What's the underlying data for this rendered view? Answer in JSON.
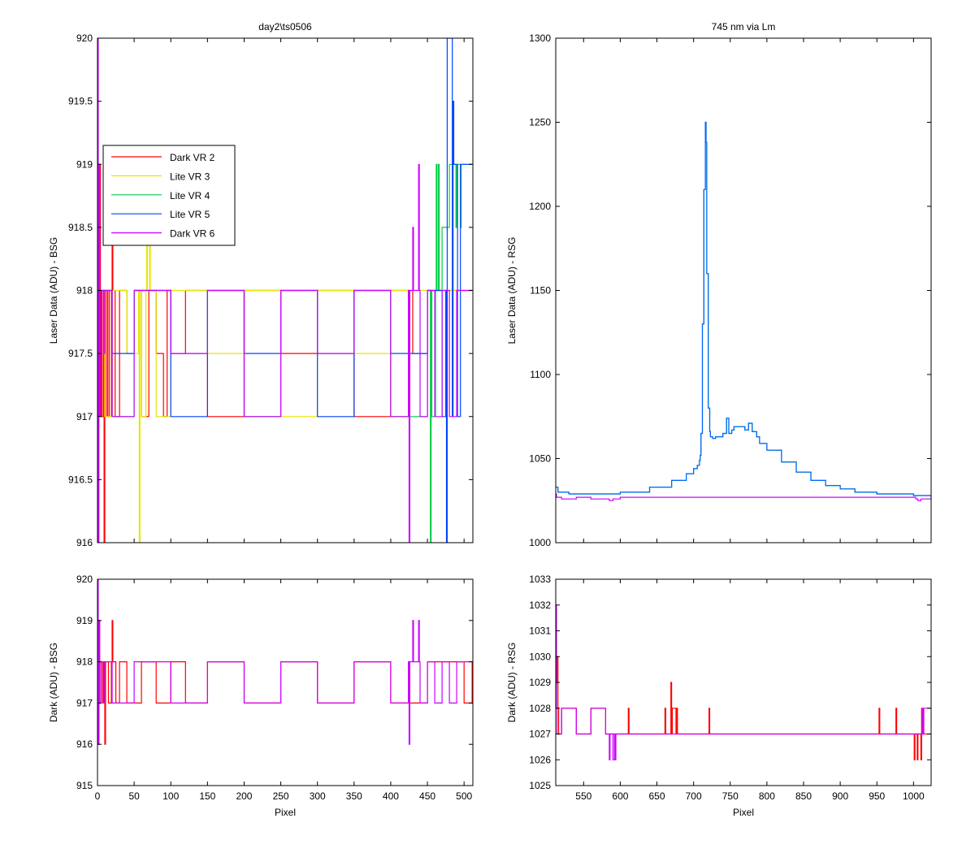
{
  "chart_data": [
    {
      "type": "line",
      "title": "day2\\ts0506",
      "ylabel": "Laser Data (ADU) - BSG",
      "xlabel": "",
      "xlim": [
        0,
        512
      ],
      "ylim": [
        916,
        920
      ],
      "xticks": [
        0,
        50,
        100,
        150,
        200,
        250,
        300,
        350,
        400,
        450,
        500
      ],
      "xtick_labels": [],
      "yticks": [
        916,
        916.5,
        917,
        917.5,
        918,
        918.5,
        919,
        919.5,
        920
      ],
      "ytick_labels": [
        "916",
        "916.5",
        "917",
        "917.5",
        "918",
        "918.5",
        "919",
        "919.5",
        "920"
      ],
      "grid": false,
      "legend": {
        "placement": "upper-left"
      },
      "series": [
        {
          "name": "Dark VR 2",
          "color": "#ff0000",
          "x": [
            0,
            1,
            2,
            3,
            4,
            5,
            6,
            8,
            9,
            10,
            12,
            14,
            16,
            19,
            20,
            21,
            24,
            30,
            40,
            50,
            60,
            70,
            80,
            90,
            95,
            100,
            120,
            150,
            200,
            250,
            300,
            350,
            400,
            430,
            450,
            480,
            511
          ],
          "y": [
            920,
            917,
            918,
            919,
            917,
            918,
            917,
            918,
            916,
            917,
            918,
            917,
            918,
            917,
            918.5,
            918,
            917,
            918,
            917.5,
            918,
            917,
            918,
            917.5,
            917,
            918,
            917.5,
            918,
            917,
            918,
            917.5,
            918,
            917,
            918,
            917.5,
            918,
            918,
            918
          ]
        },
        {
          "name": "Lite VR 3",
          "color": "#e6e600",
          "x": [
            0,
            10,
            20,
            40,
            56,
            57,
            58,
            60,
            66,
            67,
            68,
            71,
            72,
            80,
            100,
            150,
            200,
            250,
            300,
            350,
            400,
            450,
            511
          ],
          "y": [
            918,
            917,
            918,
            917.5,
            918,
            916,
            918,
            917,
            918,
            918.5,
            918,
            918.5,
            918,
            917,
            918,
            917.5,
            918,
            917,
            918,
            917.5,
            918,
            918,
            918
          ]
        },
        {
          "name": "Lite VR 4",
          "color": "#00cc44",
          "x": [
            0,
            20,
            50,
            100,
            150,
            200,
            250,
            300,
            350,
            400,
            450,
            454,
            455,
            456,
            461,
            462,
            463,
            465,
            466,
            470,
            480,
            489,
            490,
            495,
            496,
            511
          ],
          "y": [
            918,
            917,
            918,
            917.5,
            918,
            917,
            918,
            917.5,
            918,
            917,
            918,
            916,
            918,
            917,
            918,
            919,
            918,
            919,
            918,
            918.5,
            919,
            918.5,
            919,
            918.5,
            919,
            919
          ]
        },
        {
          "name": "Lite VR 5",
          "color": "#0044ff",
          "x": [
            0,
            20,
            50,
            100,
            150,
            200,
            250,
            300,
            350,
            400,
            450,
            470,
            475,
            476,
            477,
            480,
            484,
            485,
            486,
            490,
            491,
            495,
            511
          ],
          "y": [
            918,
            917.5,
            918,
            917,
            918,
            917.5,
            918,
            917,
            918,
            917.5,
            918,
            917,
            918,
            916,
            920,
            920,
            917,
            919.5,
            919,
            919,
            917,
            919,
            919
          ]
        },
        {
          "name": "Dark VR 6",
          "color": "#cc00ff",
          "x": [
            0,
            1,
            2,
            3,
            5,
            8,
            10,
            20,
            50,
            100,
            150,
            200,
            250,
            300,
            350,
            400,
            424,
            425,
            426,
            430,
            431,
            432,
            438,
            439,
            440,
            450,
            460,
            470,
            480,
            490,
            500,
            511
          ],
          "y": [
            920,
            916,
            919,
            917,
            918,
            917.5,
            918,
            917,
            918,
            917.5,
            918,
            917,
            918,
            917.5,
            918,
            917,
            918,
            916,
            918,
            918.5,
            918,
            918,
            919,
            918,
            917,
            918,
            917,
            918,
            917,
            918,
            918,
            918
          ]
        }
      ]
    },
    {
      "type": "line",
      "title": "745 nm via Lm",
      "ylabel": "Laser Data (ADU) - RSG",
      "xlabel": "",
      "xlim": [
        512,
        1024
      ],
      "ylim": [
        1000,
        1300
      ],
      "xticks": [
        550,
        600,
        650,
        700,
        750,
        800,
        850,
        900,
        950,
        1000
      ],
      "xtick_labels": [],
      "yticks": [
        1000,
        1050,
        1100,
        1150,
        1200,
        1250,
        1300
      ],
      "ytick_labels": [
        "1000",
        "1050",
        "1100",
        "1150",
        "1200",
        "1250",
        "1300"
      ],
      "grid": false,
      "series": [
        {
          "name": "",
          "color": "#00aa44",
          "x": [
            512,
            515,
            530,
            560,
            600,
            640,
            670,
            690,
            700,
            705,
            708,
            709,
            710,
            712,
            714,
            716,
            717,
            718,
            720,
            722,
            723,
            726,
            730,
            740,
            745,
            748,
            752,
            755,
            770,
            775,
            780,
            783,
            786,
            790,
            800,
            820,
            840,
            860,
            880,
            900,
            920,
            950,
            1000,
            1024
          ],
          "y": [
            1033,
            1030,
            1029,
            1029,
            1030,
            1033,
            1037,
            1041,
            1044,
            1046,
            1049,
            1052,
            1065,
            1130,
            1210,
            1250,
            1238,
            1160,
            1080,
            1066,
            1063,
            1062,
            1063,
            1065,
            1074,
            1065,
            1067,
            1069,
            1067,
            1071,
            1066,
            1066,
            1063,
            1059,
            1055,
            1048,
            1042,
            1037,
            1034,
            1032,
            1030,
            1029,
            1028,
            1027
          ]
        },
        {
          "name": "",
          "color": "#0066ff",
          "x": [
            512,
            515,
            530,
            560,
            600,
            640,
            670,
            690,
            700,
            705,
            708,
            709,
            710,
            712,
            714,
            716,
            717,
            718,
            720,
            722,
            723,
            726,
            730,
            740,
            745,
            748,
            752,
            755,
            770,
            775,
            780,
            783,
            786,
            790,
            800,
            820,
            840,
            860,
            880,
            900,
            920,
            950,
            1000,
            1024
          ],
          "y": [
            1033,
            1030,
            1029,
            1029,
            1030,
            1033,
            1037,
            1041,
            1044,
            1046,
            1049,
            1052,
            1065,
            1130,
            1210,
            1250,
            1238,
            1160,
            1080,
            1066,
            1063,
            1062,
            1063,
            1065,
            1074,
            1065,
            1067,
            1069,
            1067,
            1071,
            1066,
            1066,
            1063,
            1059,
            1055,
            1048,
            1042,
            1037,
            1034,
            1032,
            1030,
            1029,
            1028,
            1027
          ]
        },
        {
          "name": "",
          "color": "#cc00ff",
          "x": [
            512,
            513,
            520,
            540,
            560,
            580,
            585,
            590,
            600,
            700,
            800,
            900,
            1000,
            1003,
            1006,
            1010,
            1024
          ],
          "y": [
            1029,
            1027,
            1026,
            1027,
            1026,
            1026,
            1025,
            1026,
            1027,
            1027,
            1027,
            1027,
            1027,
            1026,
            1025,
            1026,
            1027
          ]
        }
      ]
    },
    {
      "type": "line",
      "title": "",
      "ylabel": "Dark (ADU) - BSG",
      "xlabel": "Pixel",
      "xlim": [
        0,
        512
      ],
      "ylim": [
        915,
        920
      ],
      "xticks": [
        0,
        50,
        100,
        150,
        200,
        250,
        300,
        350,
        400,
        450,
        500
      ],
      "xtick_labels": [
        "0",
        "50",
        "100",
        "150",
        "200",
        "250",
        "300",
        "350",
        "400",
        "450",
        "500"
      ],
      "yticks": [
        915,
        916,
        917,
        918,
        919,
        920
      ],
      "ytick_labels": [
        "915",
        "916",
        "917",
        "918",
        "919",
        "920"
      ],
      "grid": false,
      "series": [
        {
          "name": "Dark VR 2",
          "color": "#ff0000",
          "x": [
            0,
            1,
            2,
            3,
            5,
            7,
            9,
            10,
            11,
            15,
            19,
            20,
            21,
            25,
            30,
            40,
            60,
            80,
            100,
            120,
            150,
            200,
            250,
            300,
            350,
            400,
            450,
            500,
            511
          ],
          "y": [
            920,
            916,
            919,
            917,
            918,
            917,
            918,
            916,
            918,
            917,
            918,
            919,
            918,
            917,
            918,
            917,
            918,
            917,
            918,
            917,
            918,
            917,
            918,
            917,
            918,
            917,
            918,
            917,
            918
          ]
        },
        {
          "name": "Dark VR 6",
          "color": "#cc00ff",
          "x": [
            0,
            1,
            2,
            3,
            5,
            8,
            10,
            20,
            50,
            100,
            150,
            200,
            250,
            300,
            350,
            400,
            424,
            425,
            426,
            430,
            431,
            432,
            438,
            439,
            440,
            450,
            460,
            470,
            480,
            490,
            500,
            511
          ],
          "y": [
            920,
            916,
            919,
            917,
            918,
            917,
            918,
            917,
            918,
            917,
            918,
            917,
            918,
            917,
            918,
            917,
            918,
            916,
            918,
            919,
            918,
            918,
            919,
            918,
            917,
            918,
            917,
            918,
            917,
            918,
            918,
            918
          ]
        }
      ]
    },
    {
      "type": "line",
      "title": "",
      "ylabel": "Dark (ADU) - RSG",
      "xlabel": "Pixel",
      "xlim": [
        512,
        1024
      ],
      "ylim": [
        1025,
        1033
      ],
      "xticks": [
        550,
        600,
        650,
        700,
        750,
        800,
        850,
        900,
        950,
        1000
      ],
      "xtick_labels": [
        "550",
        "600",
        "650",
        "700",
        "750",
        "800",
        "850",
        "900",
        "950",
        "1000"
      ],
      "yticks": [
        1025,
        1026,
        1027,
        1028,
        1029,
        1030,
        1031,
        1032,
        1033
      ],
      "ytick_labels": [
        "1025",
        "1026",
        "1027",
        "1028",
        "1029",
        "1030",
        "1031",
        "1032",
        "1033"
      ],
      "grid": false,
      "series": [
        {
          "name": "Dark VR 2",
          "color": "#ff0000",
          "x": [
            512,
            513,
            514,
            515,
            516,
            520,
            540,
            560,
            580,
            600,
            610,
            611,
            612,
            660,
            661,
            662,
            668,
            669,
            670,
            671,
            676,
            677,
            678,
            720,
            721,
            722,
            952,
            953,
            954,
            975,
            976,
            977,
            1000,
            1001,
            1002,
            1005,
            1006,
            1010,
            1011,
            1012,
            1024
          ],
          "y": [
            1031,
            1029,
            1030,
            1028,
            1027,
            1028,
            1027,
            1028,
            1027,
            1027,
            1027,
            1028,
            1027,
            1027,
            1028,
            1027,
            1027,
            1029,
            1027,
            1028,
            1027,
            1028,
            1027,
            1027,
            1028,
            1027,
            1027,
            1028,
            1027,
            1027,
            1028,
            1027,
            1027,
            1026,
            1027,
            1026,
            1027,
            1026,
            1028,
            1027,
            1027
          ]
        },
        {
          "name": "Dark VR 6",
          "color": "#cc00ff",
          "x": [
            512,
            513,
            514,
            520,
            540,
            560,
            580,
            584,
            585,
            586,
            590,
            592,
            593,
            594,
            600,
            610,
            700,
            800,
            900,
            1000,
            1012,
            1013,
            1014,
            1020,
            1024
          ],
          "y": [
            1032,
            1028,
            1027,
            1028,
            1027,
            1028,
            1027,
            1027,
            1026,
            1027,
            1026,
            1027,
            1026,
            1027,
            1027,
            1027,
            1027,
            1027,
            1027,
            1027,
            1028,
            1027,
            1028,
            1028,
            1028
          ]
        }
      ]
    }
  ]
}
